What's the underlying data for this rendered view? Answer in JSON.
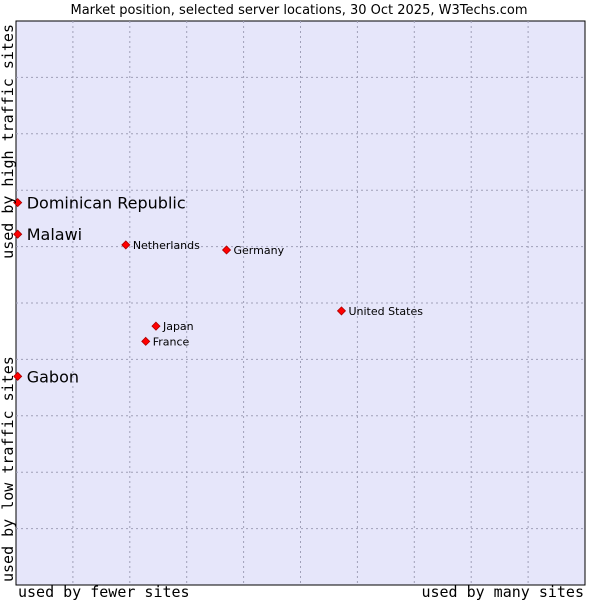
{
  "chart_data": {
    "type": "scatter",
    "title": "Market position, selected server locations, 30 Oct 2025, W3Techs.com",
    "xlabel_low": "used by fewer sites",
    "xlabel_high": "used by many sites",
    "ylabel_low": "used by low traffic sites",
    "ylabel_high": "used by high traffic sites",
    "xlim": [
      0,
      100
    ],
    "ylim": [
      0,
      100
    ],
    "grid": true,
    "colors": {
      "plot_bg": "#e6e6fa",
      "grid": "#a0a0b8",
      "marker": "#ff0000",
      "marker_edge": "#aa0000"
    },
    "points": [
      {
        "label": "Dominican Republic",
        "x": 0.3,
        "y": 67.8,
        "emphasis": true
      },
      {
        "label": "Malawi",
        "x": 0.3,
        "y": 62.2,
        "emphasis": true
      },
      {
        "label": "Netherlands",
        "x": 19.3,
        "y": 60.3,
        "emphasis": false
      },
      {
        "label": "Germany",
        "x": 37.0,
        "y": 59.4,
        "emphasis": false
      },
      {
        "label": "United States",
        "x": 57.2,
        "y": 48.6,
        "emphasis": false
      },
      {
        "label": "Japan",
        "x": 24.6,
        "y": 45.9,
        "emphasis": false
      },
      {
        "label": "France",
        "x": 22.8,
        "y": 43.2,
        "emphasis": false
      },
      {
        "label": "Gabon",
        "x": 0.3,
        "y": 37.0,
        "emphasis": true
      }
    ]
  }
}
